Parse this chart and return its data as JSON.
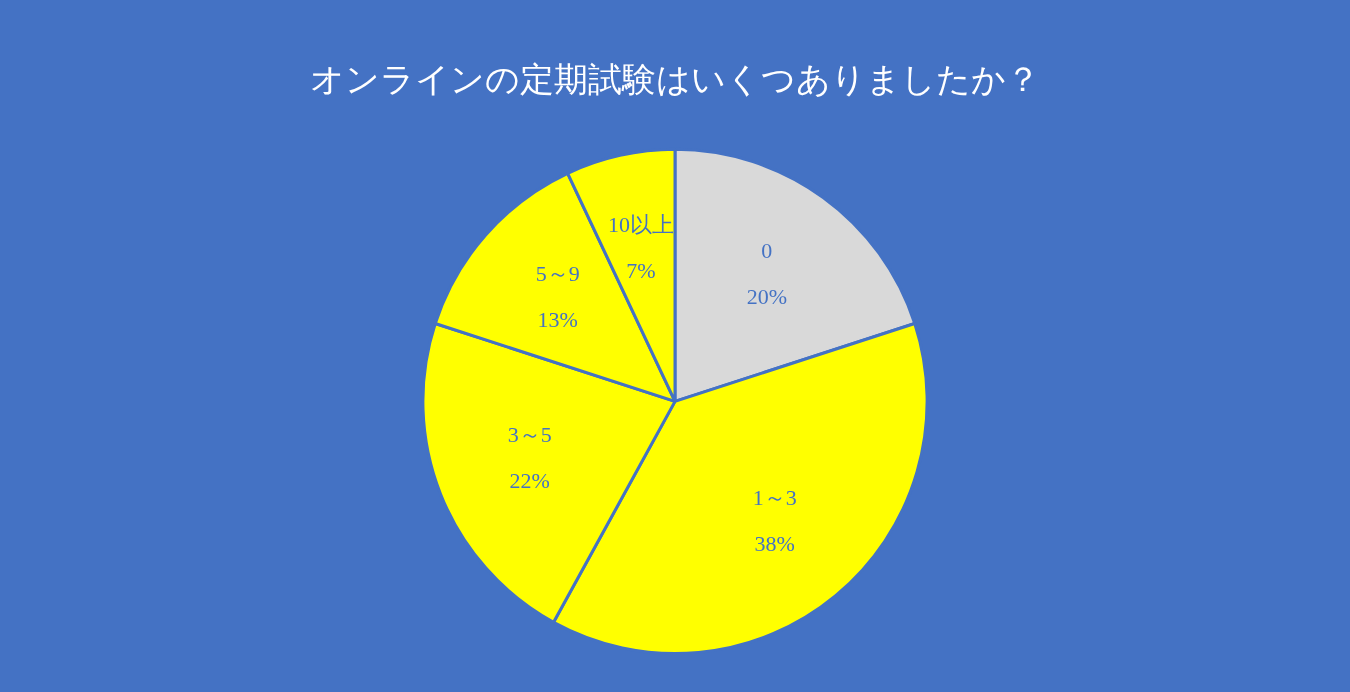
{
  "chart_data": {
    "type": "pie",
    "title": "オンラインの定期試験はいくつありましたか？",
    "categories": [
      "0",
      "1～3",
      "3～5",
      "5～9",
      "10以上"
    ],
    "values": [
      20,
      38,
      22,
      13,
      7
    ],
    "colors": [
      "#d9d9d9",
      "#ffff00",
      "#ffff00",
      "#ffff00",
      "#ffff00"
    ],
    "value_labels": [
      "20%",
      "38%",
      "22%",
      "13%",
      "7%"
    ],
    "legend": false
  }
}
